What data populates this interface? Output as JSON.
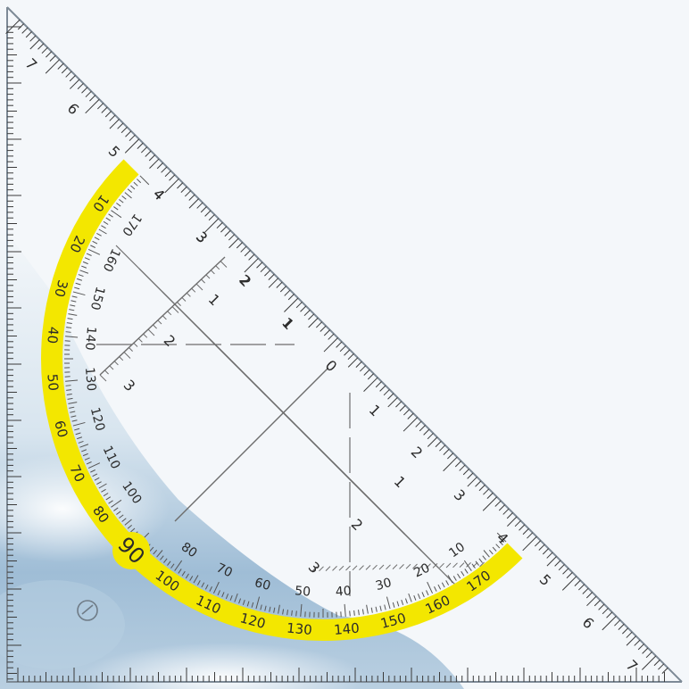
{
  "scene": {
    "subject": "transparent set square with yellow protractor arc",
    "colors": {
      "background": "#f4f7fa",
      "sky_blue": "#a8c3da",
      "ruler_ink": "#3a3a3a",
      "protractor_band": "#f3e700",
      "protractor_ink": "#1a1a1a"
    }
  },
  "hypotenuse_scale": {
    "left_numbers": [
      "7",
      "6",
      "5",
      "4",
      "3",
      "2",
      "1"
    ],
    "zero": "0",
    "right_numbers": [
      "1",
      "2",
      "3",
      "4",
      "5",
      "6",
      "7"
    ]
  },
  "protractor": {
    "outer_numbers": [
      "10",
      "20",
      "30",
      "40",
      "50",
      "60",
      "70",
      "80",
      "90",
      "100",
      "110",
      "120",
      "130",
      "140",
      "150",
      "160",
      "170"
    ],
    "inner_numbers": [
      "170",
      "160",
      "150",
      "140",
      "130",
      "120",
      "110",
      "100",
      "80",
      "70",
      "60",
      "50",
      "40",
      "30",
      "20",
      "10"
    ],
    "highlight": "90"
  },
  "inner_scales": {
    "left_leg": [
      "1",
      "2",
      "3"
    ],
    "lower_leg": [
      "1",
      "2",
      "3"
    ],
    "diagonal": [
      "1",
      "2",
      "3",
      "4"
    ]
  }
}
